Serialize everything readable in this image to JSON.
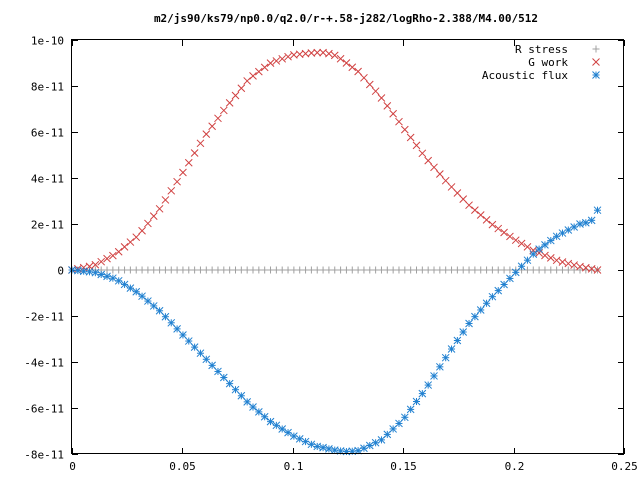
{
  "chart_data": {
    "type": "scatter",
    "title": "m2/js90/ks79/np0.0/q2.0/r-+.58-j282/logRho-2.388/M4.00/512",
    "xlabel": "",
    "ylabel": "",
    "xlim": [
      0,
      0.25
    ],
    "ylim": [
      -8e-11,
      1e-10
    ],
    "grid": false,
    "legend_position": "top-right",
    "x_ticks": [
      {
        "value": 0,
        "label": "0"
      },
      {
        "value": 0.05,
        "label": "0.05"
      },
      {
        "value": 0.1,
        "label": "0.1"
      },
      {
        "value": 0.15,
        "label": "0.15"
      },
      {
        "value": 0.2,
        "label": "0.2"
      },
      {
        "value": 0.25,
        "label": "0.25"
      }
    ],
    "y_ticks": [
      {
        "value": 1e-10,
        "label": "1e-10"
      },
      {
        "value": 8e-11,
        "label": "8e-11"
      },
      {
        "value": 6e-11,
        "label": "6e-11"
      },
      {
        "value": 4e-11,
        "label": "4e-11"
      },
      {
        "value": 2e-11,
        "label": "2e-11"
      },
      {
        "value": 0,
        "label": "0"
      },
      {
        "value": -2e-11,
        "label": "-2e-11"
      },
      {
        "value": -4e-11,
        "label": "-4e-11"
      },
      {
        "value": -6e-11,
        "label": "-6e-11"
      },
      {
        "value": -8e-11,
        "label": "-8e-11"
      }
    ],
    "series": [
      {
        "name": "R stress",
        "marker": "plus",
        "color": "#a0a0a0",
        "x": [
          0,
          0.02,
          0.04,
          0.06,
          0.08,
          0.1,
          0.12,
          0.14,
          0.16,
          0.18,
          0.2,
          0.22,
          0.238
        ],
        "y": [
          0,
          0,
          0,
          0,
          0,
          0,
          0,
          0,
          0,
          0,
          0,
          0,
          0
        ]
      },
      {
        "name": "G work",
        "marker": "cross",
        "color": "#d04040",
        "x": [
          0,
          0.01,
          0.02,
          0.03,
          0.04,
          0.05,
          0.06,
          0.07,
          0.08,
          0.09,
          0.1,
          0.11,
          0.115,
          0.12,
          0.13,
          0.14,
          0.15,
          0.16,
          0.17,
          0.18,
          0.19,
          0.2,
          0.21,
          0.22,
          0.23,
          0.238
        ],
        "y": [
          0,
          2e-12,
          7e-12,
          1.5e-11,
          2.7e-11,
          4.2e-11,
          5.8e-11,
          7.1e-11,
          8.3e-11,
          9e-11,
          9.35e-11,
          9.45e-11,
          9.45e-11,
          9.3e-11,
          8.6e-11,
          7.5e-11,
          6.2e-11,
          4.9e-11,
          3.8e-11,
          2.8e-11,
          2e-11,
          1.35e-11,
          8e-12,
          4e-12,
          1.5e-12,
          0
        ]
      },
      {
        "name": "Acoustic flux",
        "marker": "star",
        "color": "#2080d0",
        "x": [
          0,
          0.01,
          0.02,
          0.03,
          0.04,
          0.05,
          0.06,
          0.07,
          0.08,
          0.09,
          0.1,
          0.11,
          0.12,
          0.125,
          0.13,
          0.14,
          0.15,
          0.16,
          0.17,
          0.18,
          0.19,
          0.2,
          0.21,
          0.22,
          0.23,
          0.235,
          0.238
        ],
        "y": [
          0,
          -1e-12,
          -4e-12,
          -1e-11,
          -1.8e-11,
          -2.8e-11,
          -3.8e-11,
          -4.8e-11,
          -5.8e-11,
          -6.6e-11,
          -7.2e-11,
          -7.65e-11,
          -7.85e-11,
          -7.9e-11,
          -7.85e-11,
          -7.4e-11,
          -6.5e-11,
          -5.2e-11,
          -3.7e-11,
          -2.3e-11,
          -1.2e-11,
          -2e-12,
          8e-12,
          1.5e-11,
          2e-11,
          2.1e-11,
          2.6e-11
        ]
      }
    ]
  }
}
